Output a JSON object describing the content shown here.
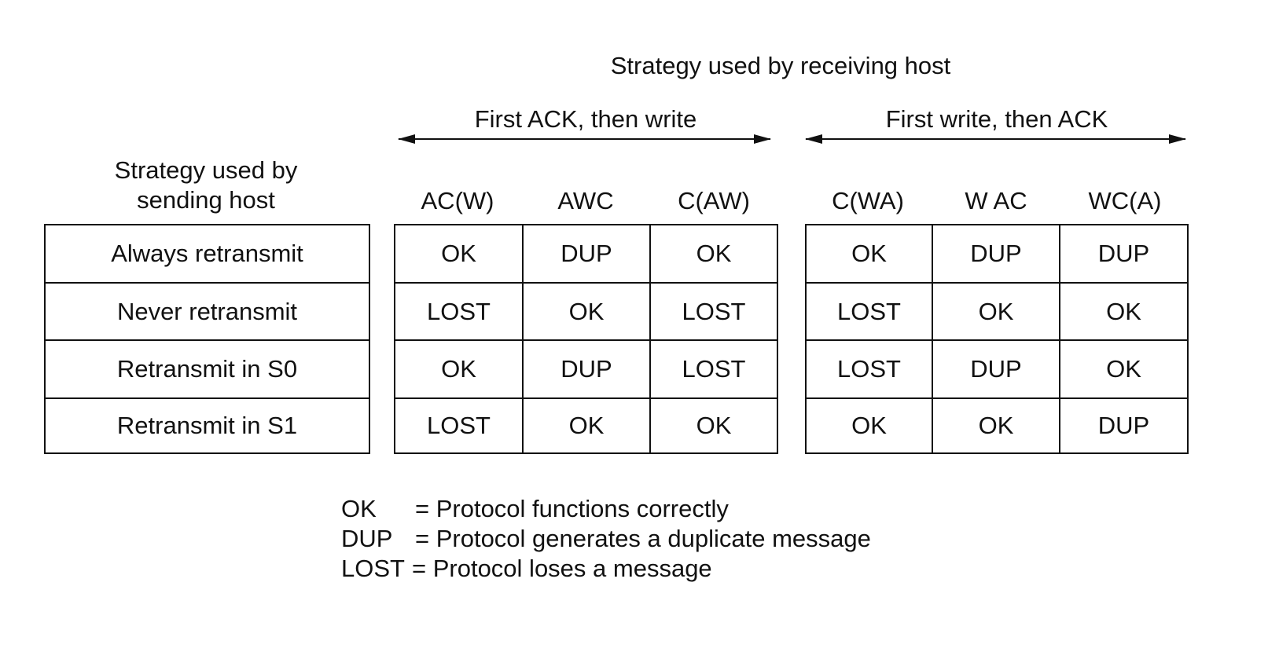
{
  "title_receiving": "Strategy used by receiving host",
  "groups": [
    {
      "label": "First ACK, then write"
    },
    {
      "label": "First  write, then ACK"
    }
  ],
  "sending_header": [
    "Strategy used by",
    "sending host"
  ],
  "columns": [
    "AC(W)",
    "AWC",
    "C(AW)",
    "C(WA)",
    "W AC",
    "WC(A)"
  ],
  "rows": [
    {
      "label": "Always retransmit",
      "cells": [
        "OK",
        "DUP",
        "OK",
        "OK",
        "DUP",
        "DUP"
      ]
    },
    {
      "label": "Never retransmit",
      "cells": [
        "LOST",
        "OK",
        "LOST",
        "LOST",
        "OK",
        "OK"
      ]
    },
    {
      "label": "Retransmit in S0",
      "cells": [
        "OK",
        "DUP",
        "LOST",
        "LOST",
        "DUP",
        "OK"
      ]
    },
    {
      "label": "Retransmit in S1",
      "cells": [
        "LOST",
        "OK",
        "OK",
        "OK",
        "OK",
        "DUP"
      ]
    }
  ],
  "legend": [
    {
      "key": "OK",
      "text": "=  Protocol functions correctly"
    },
    {
      "key": "DUP",
      "text": "= Protocol generates a duplicate message"
    },
    {
      "key": "LOST",
      "text": "= Protocol loses a message"
    }
  ]
}
